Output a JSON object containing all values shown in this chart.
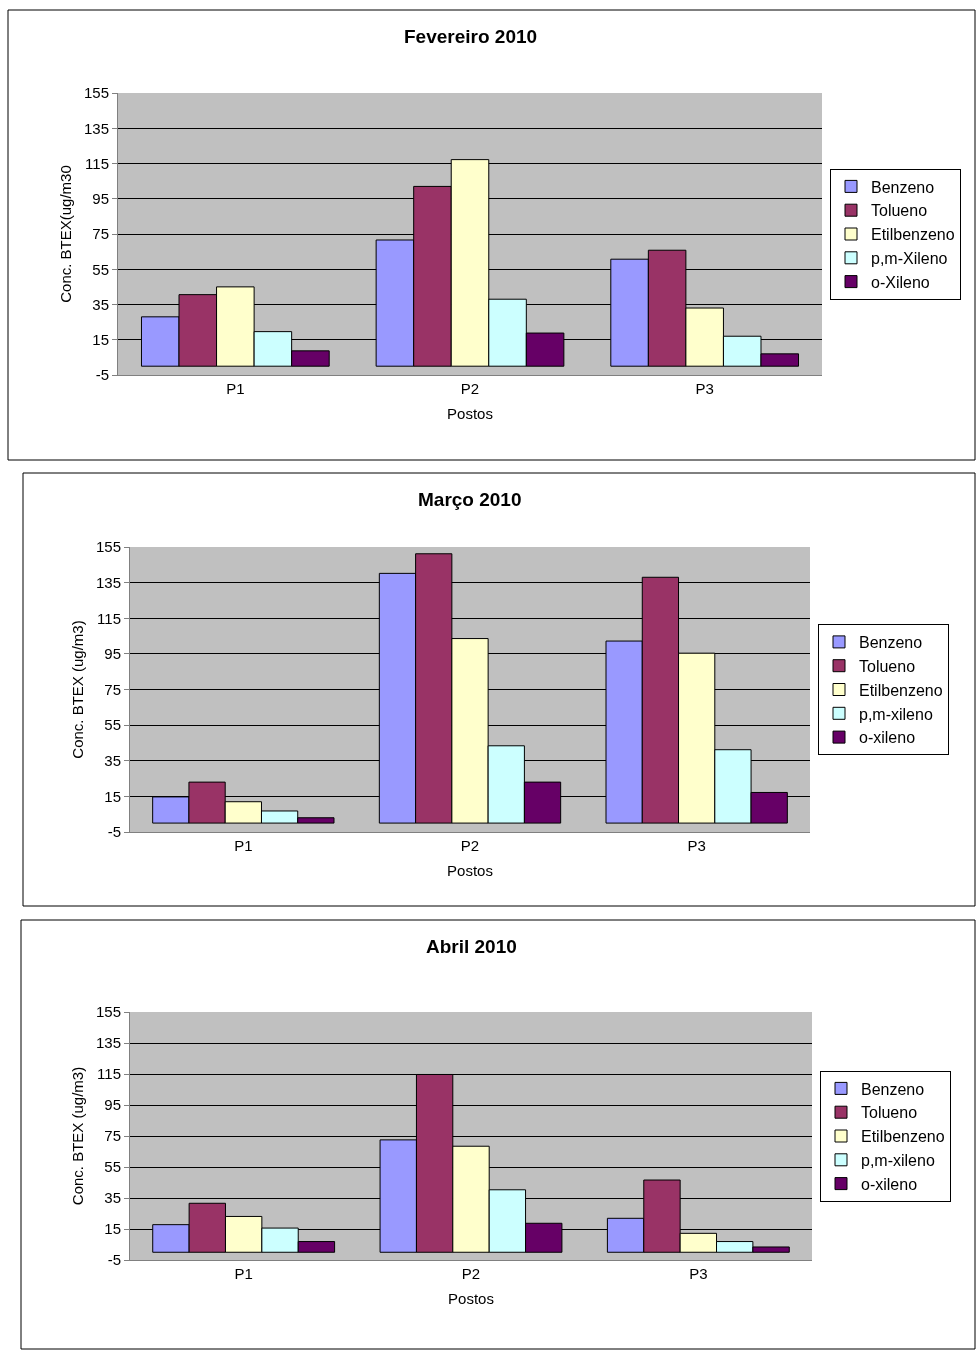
{
  "chart_data": [
    {
      "type": "bar",
      "title": "Fevereiro 2010",
      "xlabel": "Postos",
      "ylabel": "Conc. BTEX(ug/m30",
      "categories": [
        "P1",
        "P2",
        "P3"
      ],
      "ylim": [
        -5,
        155
      ],
      "yticks": [
        -5,
        15,
        35,
        55,
        75,
        95,
        115,
        135,
        155
      ],
      "grid": "y",
      "legend": "right",
      "series": [
        {
          "name": "Benzeno",
          "color": "#9999ff",
          "values": [
            28,
            71.6,
            60.7
          ]
        },
        {
          "name": "Tolueno",
          "color": "#993366",
          "values": [
            40.6,
            102,
            65.8
          ]
        },
        {
          "name": "Etilbenzeno",
          "color": "#ffffcc",
          "values": [
            45,
            117.2,
            33
          ]
        },
        {
          "name": "p,m-Xileno",
          "color": "#ccffff",
          "values": [
            19.6,
            38,
            17
          ]
        },
        {
          "name": "o-Xileno",
          "color": "#660066",
          "values": [
            8.7,
            18.8,
            7
          ]
        }
      ]
    },
    {
      "type": "bar",
      "title": "Março 2010",
      "xlabel": "Postos",
      "ylabel": "Conc. BTEX (ug/m3)",
      "categories": [
        "P1",
        "P2",
        "P3"
      ],
      "ylim": [
        -5,
        155
      ],
      "yticks": [
        -5,
        15,
        35,
        55,
        75,
        95,
        115,
        135,
        155
      ],
      "grid": "y",
      "legend": "right",
      "series": [
        {
          "name": "Benzeno",
          "color": "#9999ff",
          "values": [
            14.7,
            140.2,
            102.2
          ]
        },
        {
          "name": "Tolueno",
          "color": "#993366",
          "values": [
            23,
            151.2,
            138
          ]
        },
        {
          "name": "Etilbenzeno",
          "color": "#ffffcc",
          "values": [
            12,
            103.6,
            95.4
          ]
        },
        {
          "name": "p,m-xileno",
          "color": "#ccffff",
          "values": [
            6.8,
            43.4,
            41.2
          ]
        },
        {
          "name": "o-xileno",
          "color": "#660066",
          "values": [
            3,
            23,
            17.2
          ]
        }
      ]
    },
    {
      "type": "bar",
      "title": "Abril 2010",
      "xlabel": "Postos",
      "ylabel": "Conc. BTEX (ug/m3)",
      "categories": [
        "P1",
        "P2",
        "P3"
      ],
      "ylim": [
        -5,
        155
      ],
      "yticks": [
        -5,
        15,
        35,
        55,
        75,
        95,
        115,
        135,
        155
      ],
      "grid": "y",
      "legend": "right",
      "series": [
        {
          "name": "Benzeno",
          "color": "#9999ff",
          "values": [
            17.8,
            72.5,
            21.9
          ]
        },
        {
          "name": "Tolueno",
          "color": "#993366",
          "values": [
            31.6,
            114.7,
            46.6
          ]
        },
        {
          "name": "Etilbenzeno",
          "color": "#ffffcc",
          "values": [
            23.1,
            68.4,
            12.2
          ]
        },
        {
          "name": "p,m-xileno",
          "color": "#ccffff",
          "values": [
            15.6,
            40.3,
            6.9
          ]
        },
        {
          "name": "o-xileno",
          "color": "#660066",
          "values": [
            6.9,
            18.7,
            3.4
          ]
        }
      ]
    }
  ]
}
